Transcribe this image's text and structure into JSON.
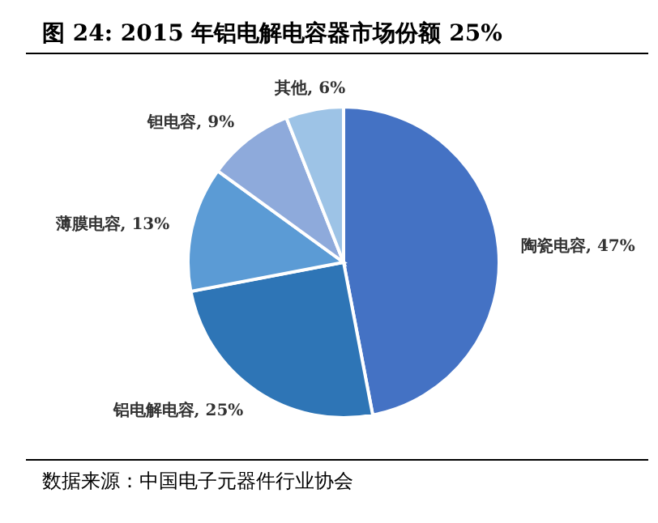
{
  "chart_data": {
    "type": "pie",
    "title": "图 24:  2015 年铝电解电容器市场份额 25%",
    "categories": [
      "陶瓷电容",
      "铝电解电容",
      "薄膜电容",
      "钽电容",
      "其他"
    ],
    "values": [
      47,
      25,
      13,
      9,
      6
    ],
    "value_labels": [
      "47%",
      "25%",
      "13%",
      "9%",
      "6%"
    ],
    "colors": [
      "#4472c4",
      "#2e75b6",
      "#5b9bd5",
      "#8eaadb",
      "#9dc3e6"
    ],
    "annotations": [
      "数据来源：中国电子元器件行业协会"
    ]
  }
}
